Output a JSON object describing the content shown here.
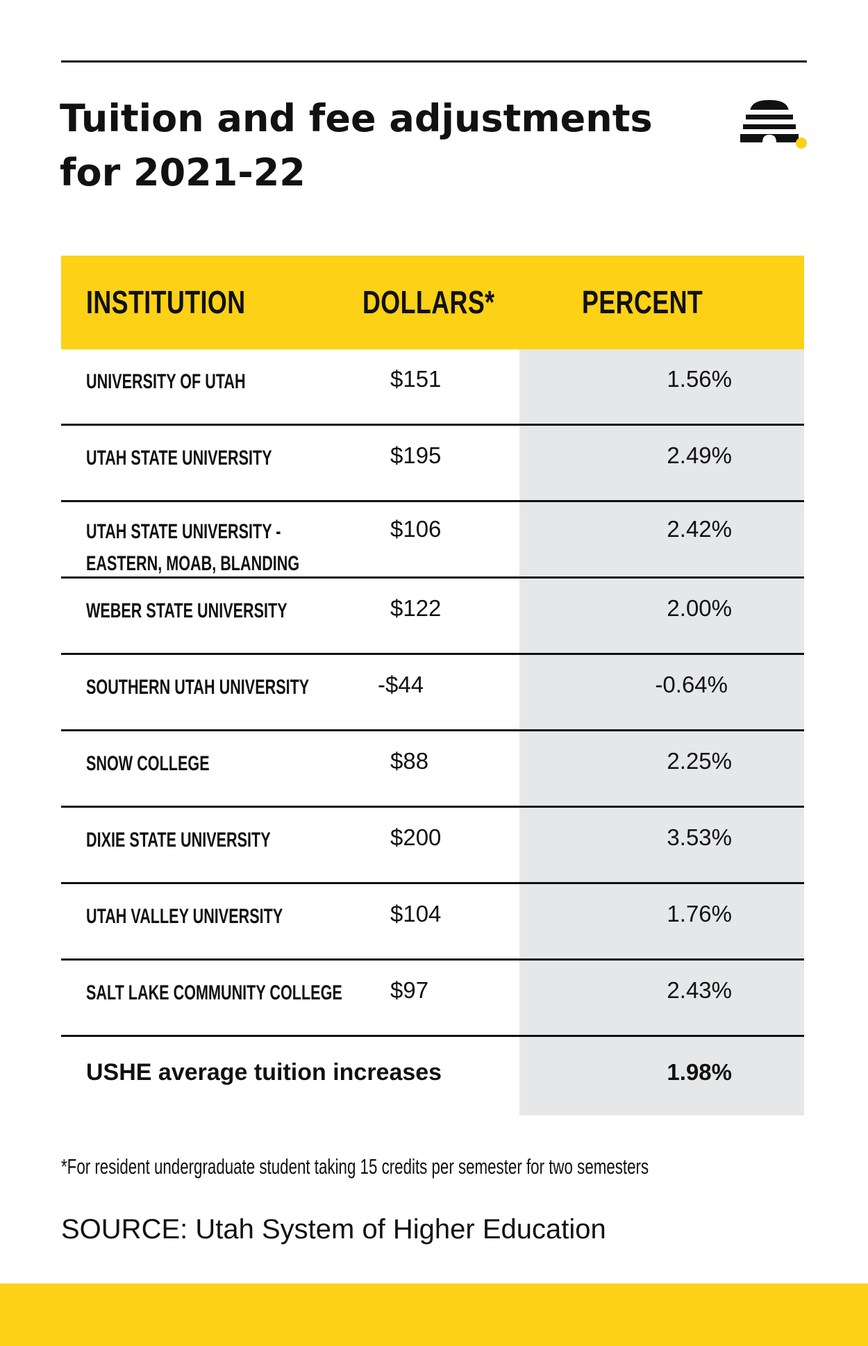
{
  "title": "Tuition and fee adjustments for 2021-22",
  "colors": {
    "accent": "#fcd116",
    "shade": "#e6e7e8",
    "text": "#111111"
  },
  "logo_icon": "beehive-icon",
  "chart_data": {
    "type": "table",
    "title": "Tuition and fee adjustments for 2021-22",
    "columns": [
      "INSTITUTION",
      "DOLLARS*",
      "PERCENT"
    ],
    "rows": [
      {
        "institution": "UNIVERSITY OF UTAH",
        "dollars": "$151",
        "percent": "1.56%"
      },
      {
        "institution": "UTAH STATE UNIVERSITY",
        "dollars": "$195",
        "percent": "2.49%"
      },
      {
        "institution": "UTAH STATE UNIVERSITY - EASTERN, MOAB, BLANDING",
        "institution_lines": [
          "UTAH STATE UNIVERSITY -",
          "EASTERN, MOAB, BLANDING"
        ],
        "dollars": "$106",
        "percent": "2.42%"
      },
      {
        "institution": "WEBER STATE UNIVERSITY",
        "dollars": "$122",
        "percent": "2.00%"
      },
      {
        "institution": "SOUTHERN UTAH UNIVERSITY",
        "dollars": "-$44",
        "percent": "-0.64%"
      },
      {
        "institution": "SNOW COLLEGE",
        "dollars": "$88",
        "percent": "2.25%"
      },
      {
        "institution": "DIXIE STATE UNIVERSITY",
        "dollars": "$200",
        "percent": "3.53%"
      },
      {
        "institution": "UTAH VALLEY UNIVERSITY",
        "dollars": "$104",
        "percent": "1.76%"
      },
      {
        "institution": "SALT LAKE COMMUNITY COLLEGE",
        "dollars": "$97",
        "percent": "2.43%"
      }
    ],
    "summary": {
      "label": "USHE average tuition increases",
      "percent": "1.98%"
    }
  },
  "footnote": "*For resident undergraduate student taking 15 credits per semester for two semesters",
  "source": "SOURCE: Utah System of Higher Education"
}
